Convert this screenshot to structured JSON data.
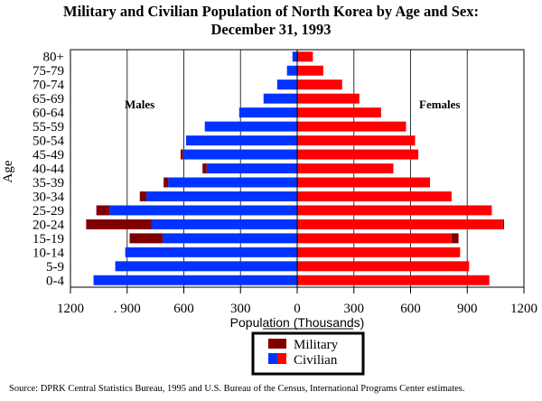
{
  "chart_data": {
    "type": "bar",
    "subtype": "population-pyramid-stacked",
    "title": "Military and Civilian Population of North Korea by Age and Sex:",
    "subtitle": "December 31, 1993",
    "xlabel": "Population (Thousands)",
    "ylabel": "Age",
    "xlim": [
      -1200,
      1200
    ],
    "xticks": [
      -1200,
      -900,
      -600,
      -300,
      0,
      300,
      600,
      900,
      1200
    ],
    "xtick_labels": [
      "1200",
      ". 900",
      "600",
      "300",
      "0",
      "300",
      "600",
      "900",
      "1200"
    ],
    "grid": true,
    "side_labels": {
      "left": "Males",
      "right": "Females"
    },
    "categories": [
      "80+",
      "75-79",
      "70-74",
      "65-69",
      "60-64",
      "55-59",
      "50-54",
      "45-49",
      "40-44",
      "35-39",
      "30-34",
      "25-29",
      "20-24",
      "15-19",
      "10-14",
      "5-9",
      "0-4"
    ],
    "series": [
      {
        "name": "Male Civilian",
        "sex": "male",
        "kind": "civilian",
        "color": "#0033ff",
        "values": [
          25,
          54,
          106,
          178,
          307,
          489,
          588,
          604,
          479,
          683,
          798,
          993,
          770,
          712,
          910,
          963,
          1078
        ]
      },
      {
        "name": "Male Military",
        "sex": "male",
        "kind": "military",
        "color": "#800000",
        "values": [
          0,
          0,
          0,
          0,
          0,
          0,
          0,
          13,
          22,
          24,
          35,
          70,
          347,
          175,
          0,
          0,
          0
        ]
      },
      {
        "name": "Female Civilian",
        "sex": "female",
        "kind": "civilian",
        "color": "#ff0000",
        "values": [
          83,
          138,
          238,
          329,
          444,
          576,
          624,
          641,
          509,
          703,
          817,
          1030,
          1089,
          817,
          862,
          910,
          1017
        ]
      },
      {
        "name": "Female Military",
        "sex": "female",
        "kind": "military",
        "color": "#800000",
        "values": [
          0,
          0,
          0,
          0,
          0,
          0,
          0,
          0,
          0,
          0,
          0,
          0,
          6,
          37,
          0,
          0,
          0
        ]
      }
    ],
    "legend": {
      "placement": "bottom-center",
      "entries": [
        {
          "label": "Military",
          "colors": [
            "#800000"
          ]
        },
        {
          "label": "Civilian",
          "colors": [
            "#0033ff",
            "#ff0000"
          ]
        }
      ]
    }
  },
  "source": "Source:  DPRK Central Statistics Bureau, 1995 and U.S. Bureau of the Census, International Programs Center estimates."
}
